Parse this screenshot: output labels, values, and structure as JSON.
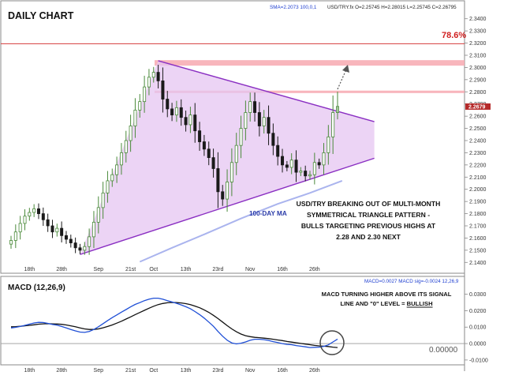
{
  "chart_data": [
    {
      "type": "candlestick",
      "title": "DAILY CHART",
      "symbol_readout": "USD/TRY.fx O=2.25745 H=2.28015 L=2.25745 C=2.26795",
      "sma_readout": "SMA=2.2073  100,0,1",
      "ylim": [
        2.135,
        2.345
      ],
      "y_ticks": [
        "2.1400",
        "2.1500",
        "2.1600",
        "2.1700",
        "2.1800",
        "2.1900",
        "2.2000",
        "2.2100",
        "2.2200",
        "2.2300",
        "2.2400",
        "2.2500",
        "2.2600",
        "2.2700",
        "2.2800",
        "2.2900",
        "2.3000",
        "2.3100",
        "2.3200",
        "2.3300",
        "2.3400"
      ],
      "y_tick_values": [
        2.14,
        2.15,
        2.16,
        2.17,
        2.18,
        2.19,
        2.2,
        2.21,
        2.22,
        2.23,
        2.24,
        2.25,
        2.26,
        2.27,
        2.28,
        2.29,
        2.3,
        2.31,
        2.32,
        2.33,
        2.34
      ],
      "last_price_label": "2.2679",
      "last_price": 2.2679,
      "x_tick_labels": [
        "18th",
        "28th",
        "Sep",
        "21st",
        "Oct",
        "13th",
        "23rd",
        "Nov",
        "16th",
        "26th"
      ],
      "x_tick_index": [
        4,
        11,
        19,
        26,
        31,
        38,
        45,
        52,
        59,
        66
      ],
      "fib_label": "78.6%",
      "fib_level": 2.3195,
      "resistance_zones": [
        {
          "top": 2.306,
          "bottom": 2.3015
        },
        {
          "top": 2.281,
          "bottom": 2.279
        }
      ],
      "triangle": {
        "upper_start": {
          "i": 32,
          "y": 2.3055
        },
        "upper_end": {
          "i": 79,
          "y": 2.2555
        },
        "lower_start": {
          "i": 15,
          "y": 2.1465
        },
        "lower_end": {
          "i": 79,
          "y": 2.2255
        }
      },
      "ma_label": "100-DAY MA",
      "ma_series": [
        [
          28,
          2.1405
        ],
        [
          35,
          2.152
        ],
        [
          42,
          2.163
        ],
        [
          50,
          2.176
        ],
        [
          58,
          2.188
        ],
        [
          65,
          2.197
        ],
        [
          72,
          2.207
        ]
      ],
      "annotation": "USD/TRY BREAKING OUT OF MULTI-MONTH SYMMETRICAL TRIANGLE PATTERN - BULLS TARGETING PREVIOUS HIGHS AT 2.28 AND 2.30 NEXT",
      "closes": [
        2.158,
        2.165,
        2.172,
        2.178,
        2.181,
        2.184,
        2.18,
        2.175,
        2.17,
        2.165,
        2.168,
        2.162,
        2.159,
        2.156,
        2.152,
        2.15,
        2.153,
        2.161,
        2.173,
        2.185,
        2.197,
        2.207,
        2.212,
        2.22,
        2.23,
        2.24,
        2.252,
        2.265,
        2.272,
        2.284,
        2.292,
        2.296,
        2.289,
        2.274,
        2.266,
        2.261,
        2.267,
        2.259,
        2.253,
        2.261,
        2.248,
        2.239,
        2.233,
        2.226,
        2.217,
        2.198,
        2.192,
        2.206,
        2.222,
        2.236,
        2.25,
        2.263,
        2.272,
        2.263,
        2.252,
        2.259,
        2.246,
        2.236,
        2.227,
        2.22,
        2.218,
        2.224,
        2.214,
        2.215,
        2.211,
        2.212,
        2.222,
        2.22,
        2.23,
        2.243,
        2.263,
        2.268
      ]
    },
    {
      "type": "line",
      "title": "MACD (12,26,9)",
      "readout": "MACD=0.0027  MACD sig=-0.0024  12,26,9",
      "ylim": [
        -0.0115,
        0.0375
      ],
      "y_ticks": [
        "0.0300",
        "0.0200",
        "0.0100",
        "0.0000",
        "-0.0100"
      ],
      "y_tick_values": [
        0.03,
        0.02,
        0.01,
        0.0,
        -0.01
      ],
      "zero_label": "0.00000",
      "annotation": "MACD TURNING HIGHER ABOVE ITS SIGNAL LINE AND \"0\" LEVEL = BULLISH",
      "annotation_emphasis": "BULLISH",
      "x_tick_labels": [
        "18th",
        "28th",
        "Sep",
        "21st",
        "Oct",
        "13th",
        "23rd",
        "Nov",
        "16th",
        "26th"
      ],
      "series": [
        {
          "name": "MACD",
          "color": "#1f4fd6",
          "values": [
            0.0095,
            0.0099,
            0.0104,
            0.0111,
            0.0118,
            0.0125,
            0.0129,
            0.0128,
            0.0123,
            0.0116,
            0.0112,
            0.0104,
            0.0095,
            0.0086,
            0.0077,
            0.007,
            0.0068,
            0.0074,
            0.0086,
            0.0102,
            0.0121,
            0.014,
            0.0158,
            0.0174,
            0.0191,
            0.0207,
            0.0223,
            0.0238,
            0.0249,
            0.0261,
            0.027,
            0.0276,
            0.0276,
            0.027,
            0.0261,
            0.0253,
            0.0245,
            0.0235,
            0.0224,
            0.0212,
            0.0195,
            0.0176,
            0.0155,
            0.0131,
            0.0105,
            0.0074,
            0.0045,
            0.002,
            0.0004,
            -0.0002,
            0.0002,
            0.001,
            0.002,
            0.0026,
            0.0026,
            0.0024,
            0.0019,
            0.0012,
            0.0006,
            0.0,
            -0.0005,
            -0.0007,
            -0.0012,
            -0.0016,
            -0.002,
            -0.0024,
            -0.0023,
            -0.0022,
            -0.0017,
            -0.0008,
            0.001,
            0.0027
          ]
        },
        {
          "name": "Signal",
          "color": "#111111",
          "values": [
            0.0102,
            0.0103,
            0.0105,
            0.0108,
            0.0111,
            0.0114,
            0.0118,
            0.012,
            0.0121,
            0.012,
            0.0119,
            0.0117,
            0.0113,
            0.0108,
            0.0102,
            0.0095,
            0.0089,
            0.0086,
            0.0086,
            0.0089,
            0.0096,
            0.0104,
            0.0113,
            0.0124,
            0.0136,
            0.0149,
            0.0162,
            0.0176,
            0.0189,
            0.0202,
            0.0215,
            0.0227,
            0.0237,
            0.0244,
            0.0248,
            0.025,
            0.0249,
            0.0247,
            0.0243,
            0.0237,
            0.0228,
            0.0218,
            0.0205,
            0.019,
            0.0172,
            0.0152,
            0.0131,
            0.0109,
            0.0089,
            0.0072,
            0.0058,
            0.0048,
            0.0042,
            0.0038,
            0.0036,
            0.0033,
            0.003,
            0.0026,
            0.0022,
            0.0018,
            0.0013,
            0.0009,
            0.0005,
            0.0001,
            -0.0003,
            -0.0007,
            -0.0011,
            -0.0014,
            -0.0016,
            -0.0018,
            -0.0022,
            -0.0024
          ]
        }
      ]
    }
  ]
}
